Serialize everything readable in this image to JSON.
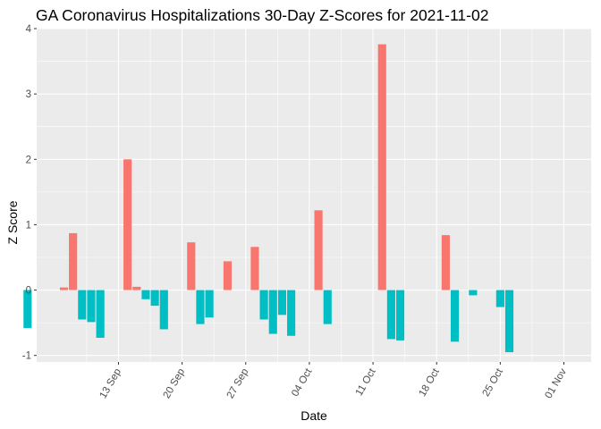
{
  "chart_data": {
    "type": "bar",
    "title": "GA Coronavirus Hospitalizations 30-Day Z-Scores for 2021-11-02",
    "xlabel": "Date",
    "ylabel": "Z Score",
    "ylim": [
      -1.1,
      4.0
    ],
    "yticks": [
      -1,
      0,
      1,
      2,
      3,
      4
    ],
    "xtick_labels": [
      "13 Sep",
      "20 Sep",
      "27 Sep",
      "04 Oct",
      "11 Oct",
      "18 Oct",
      "25 Oct",
      "01 Nov"
    ],
    "xtick_dates": [
      "2021-09-13",
      "2021-09-20",
      "2021-09-27",
      "2021-10-04",
      "2021-10-11",
      "2021-10-18",
      "2021-10-25",
      "2021-11-01"
    ],
    "xlim_dates": [
      "2021-09-04",
      "2021-11-04"
    ],
    "grid": true,
    "legend": "none",
    "colors": {
      "positive": "#F8766D",
      "negative": "#00BFC4",
      "panel": "#EBEBEB",
      "grid": "#FFFFFF"
    },
    "bars": [
      {
        "date": "2021-09-03",
        "value": -0.58
      },
      {
        "date": "2021-09-07",
        "value": 0.04
      },
      {
        "date": "2021-09-08",
        "value": 0.87
      },
      {
        "date": "2021-09-09",
        "value": -0.45
      },
      {
        "date": "2021-09-10",
        "value": -0.49
      },
      {
        "date": "2021-09-11",
        "value": -0.73
      },
      {
        "date": "2021-09-14",
        "value": 2.0
      },
      {
        "date": "2021-09-15",
        "value": 0.05
      },
      {
        "date": "2021-09-16",
        "value": -0.14
      },
      {
        "date": "2021-09-17",
        "value": -0.24
      },
      {
        "date": "2021-09-18",
        "value": -0.6
      },
      {
        "date": "2021-09-21",
        "value": 0.73
      },
      {
        "date": "2021-09-22",
        "value": -0.52
      },
      {
        "date": "2021-09-23",
        "value": -0.42
      },
      {
        "date": "2021-09-25",
        "value": 0.44
      },
      {
        "date": "2021-09-28",
        "value": 0.66
      },
      {
        "date": "2021-09-29",
        "value": -0.45
      },
      {
        "date": "2021-09-30",
        "value": -0.67
      },
      {
        "date": "2021-10-01",
        "value": -0.38
      },
      {
        "date": "2021-10-02",
        "value": -0.7
      },
      {
        "date": "2021-10-05",
        "value": 1.22
      },
      {
        "date": "2021-10-06",
        "value": -0.52
      },
      {
        "date": "2021-10-12",
        "value": 3.76
      },
      {
        "date": "2021-10-13",
        "value": -0.75
      },
      {
        "date": "2021-10-14",
        "value": -0.77
      },
      {
        "date": "2021-10-19",
        "value": 0.84
      },
      {
        "date": "2021-10-20",
        "value": -0.79
      },
      {
        "date": "2021-10-22",
        "value": -0.08
      },
      {
        "date": "2021-10-25",
        "value": -0.26
      },
      {
        "date": "2021-10-26",
        "value": -0.95
      }
    ]
  }
}
